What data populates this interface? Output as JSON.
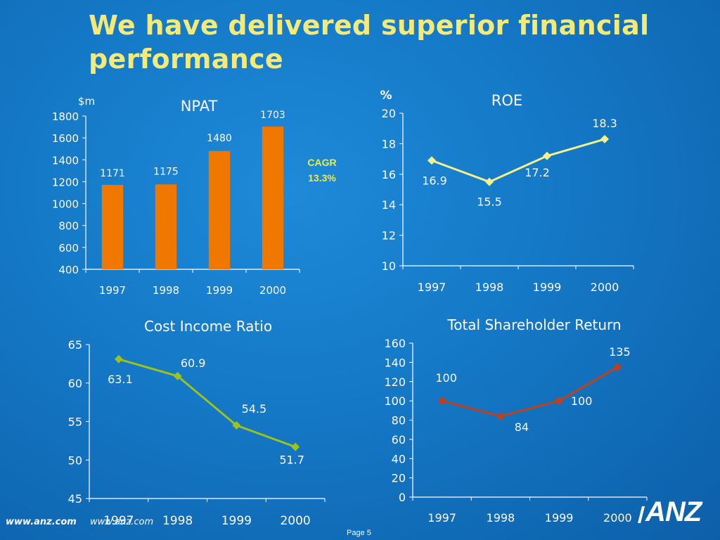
{
  "slide": {
    "title": "We have delivered superior financial performance",
    "footer_url_1": "www.anz.com",
    "footer_url_2": "www.anz.com",
    "page": "Page 5",
    "logo_text": "ANZ",
    "background": "#1478c6",
    "title_color": "#f3ea7a"
  },
  "chart_data": [
    {
      "type": "bar",
      "title": "NPAT",
      "ylabel": "$m",
      "categories": [
        "1997",
        "1998",
        "1999",
        "2000"
      ],
      "values": [
        1171,
        1175,
        1480,
        1703
      ],
      "labels": [
        "1171",
        "1175",
        "1480",
        "1703"
      ],
      "ylim": [
        400,
        1800
      ],
      "yticks": [
        400,
        600,
        800,
        1000,
        1200,
        1400,
        1600,
        1800
      ],
      "color": "#f07800",
      "annotation": [
        "CAGR",
        "13.3%"
      ],
      "annotation_color": "#f3ea3a"
    },
    {
      "type": "line",
      "title": "ROE",
      "ylabel": "%",
      "categories": [
        "1997",
        "1998",
        "1999",
        "2000"
      ],
      "values": [
        16.9,
        15.5,
        17.2,
        18.3
      ],
      "labels": [
        "16.9",
        "15.5",
        "17.2",
        "18.3"
      ],
      "ylim": [
        10,
        20
      ],
      "yticks": [
        10,
        12,
        14,
        16,
        18,
        20
      ],
      "color": "#f6f08a"
    },
    {
      "type": "line",
      "title": "Cost Income Ratio",
      "categories": [
        "1997",
        "1998",
        "1999",
        "2000"
      ],
      "values": [
        63.1,
        60.9,
        54.5,
        51.7
      ],
      "labels": [
        "63.1",
        "60.9",
        "54.5",
        "51.7"
      ],
      "ylim": [
        45,
        65
      ],
      "yticks": [
        45,
        50,
        55,
        60,
        65
      ],
      "color": "#9cc21c"
    },
    {
      "type": "line",
      "title": "Total Shareholder Return",
      "categories": [
        "1997",
        "1998",
        "1999",
        "2000"
      ],
      "values": [
        100,
        84,
        100,
        135
      ],
      "labels": [
        "100",
        "84",
        "100",
        "135"
      ],
      "ylim": [
        0,
        160
      ],
      "yticks": [
        0,
        20,
        40,
        60,
        80,
        100,
        120,
        140,
        160
      ],
      "color": "#c0401a"
    }
  ]
}
